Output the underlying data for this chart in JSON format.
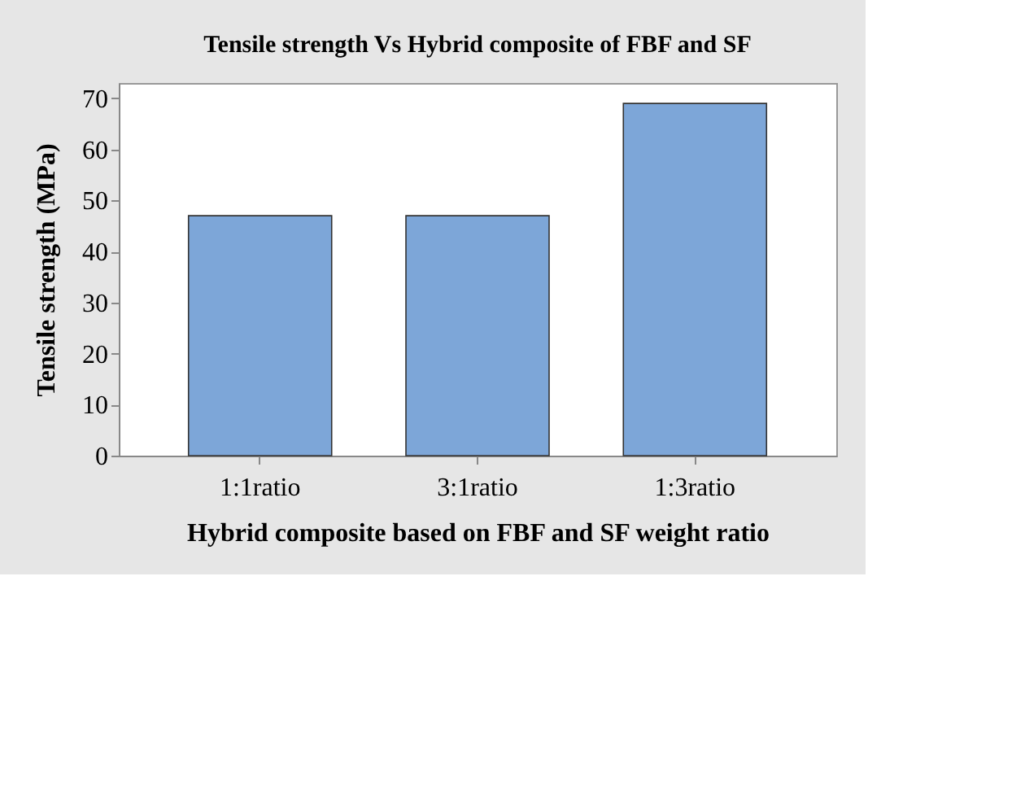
{
  "chart_data": {
    "type": "bar",
    "title": "Tensile strength Vs Hybrid composite of FBF and SF",
    "xlabel": "Hybrid composite based on FBF and SF weight ratio",
    "ylabel": "Tensile strength (MPa)",
    "categories": [
      "1:1ratio",
      "3:1ratio",
      "1:3ratio"
    ],
    "values": [
      47,
      47,
      69
    ],
    "color": "#7da6d8",
    "ylim": [
      0,
      73
    ],
    "yticks": [
      0,
      10,
      20,
      30,
      40,
      50,
      60,
      70
    ],
    "grid": false
  }
}
